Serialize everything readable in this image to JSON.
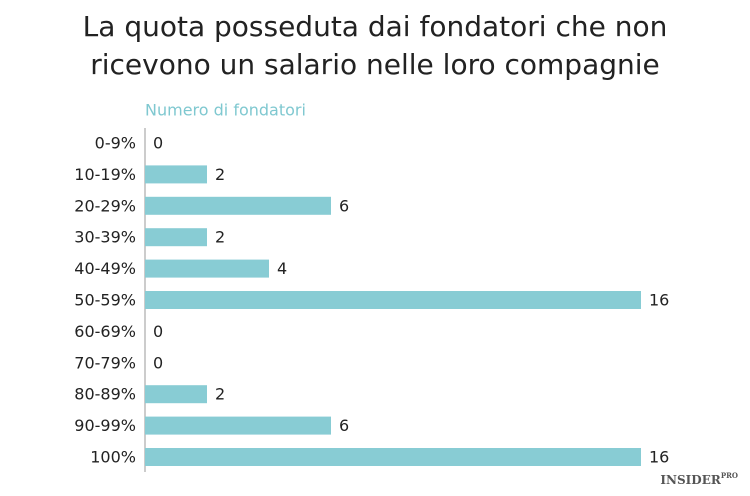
{
  "chart_data": {
    "type": "bar",
    "orientation": "horizontal",
    "title": "La quota posseduta dai fondatori che non ricevono un salario nelle loro compagnie",
    "subtitle": "Numero di fondatori",
    "categories": [
      "0-9%",
      "10-19%",
      "20-29%",
      "30-39%",
      "40-49%",
      "50-59%",
      "60-69%",
      "70-79%",
      "80-89%",
      "90-99%",
      "100%"
    ],
    "values": [
      0,
      2,
      6,
      2,
      4,
      16,
      0,
      0,
      2,
      6,
      16
    ],
    "color": "#88ccd4",
    "xlim": [
      0,
      16
    ]
  },
  "watermark": {
    "text": "INSIDER",
    "sup": "PRO"
  }
}
